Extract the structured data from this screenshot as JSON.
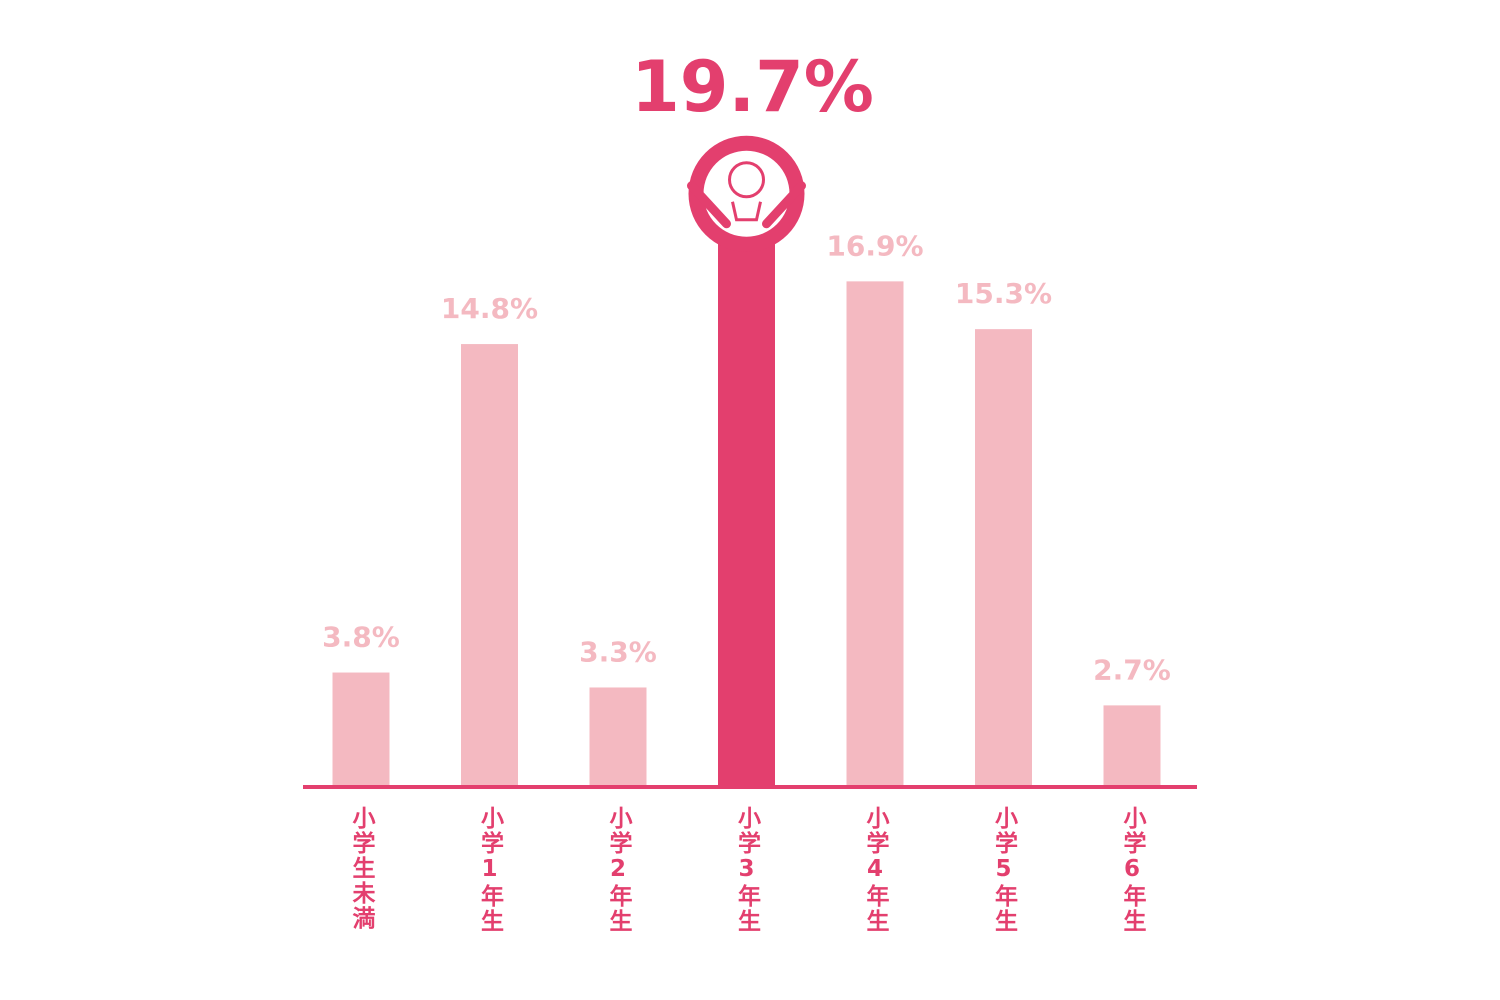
{
  "chart_data": {
    "type": "bar",
    "categories": [
      "小学生未満",
      "小学1年生",
      "小学2年生",
      "小学3年生",
      "小学4年生",
      "小学5年生",
      "小学6年生"
    ],
    "values": [
      3.8,
      14.8,
      3.3,
      19.7,
      16.9,
      15.3,
      2.7
    ],
    "value_labels": [
      "3.8%",
      "14.8%",
      "3.3%",
      "19.7%",
      "16.9%",
      "15.3%",
      "2.7%"
    ],
    "color": "#f4b9c1",
    "highlight_color": "#e33f6e",
    "highlight": 3
  }
}
